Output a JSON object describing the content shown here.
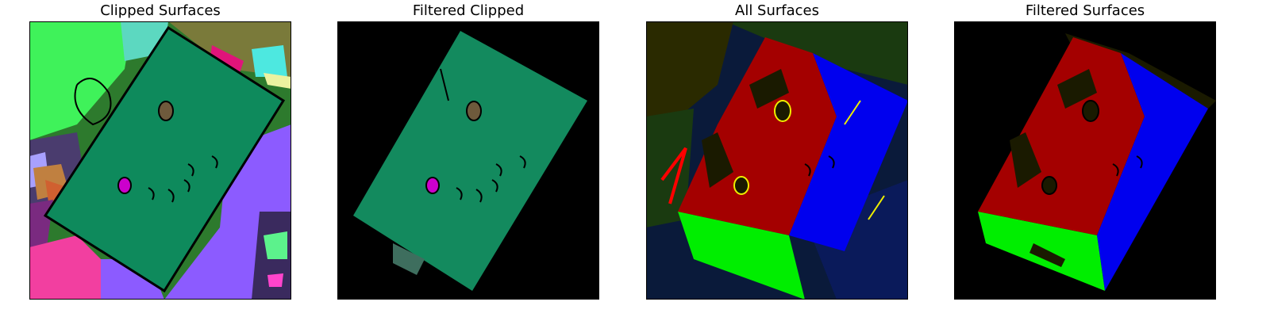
{
  "figure": {
    "panels": [
      {
        "title": "Clipped Surfaces"
      },
      {
        "title": "Filtered Clipped"
      },
      {
        "title": "All Surfaces"
      },
      {
        "title": "Filtered Surfaces"
      }
    ]
  },
  "colors": {
    "background": "#000000",
    "roof_green": "#0e8a5c",
    "filtered_green": "#138a5e",
    "red_face": "#a40000",
    "blue_face": "#0000ee",
    "lime_face": "#00ee00",
    "magenta_hole": "#cc00cc",
    "brown_hole": "#6e5a3c"
  }
}
